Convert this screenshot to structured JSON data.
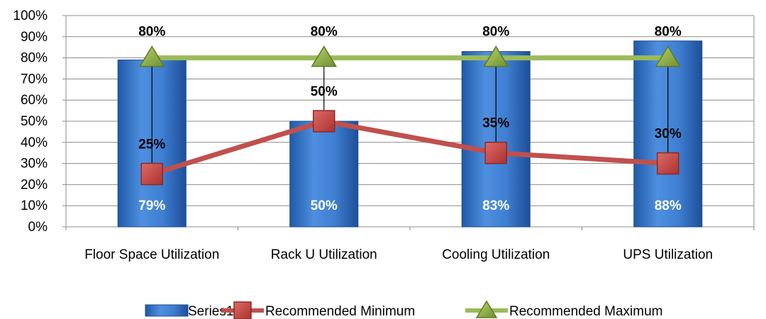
{
  "chart_data": {
    "type": "bar",
    "categories": [
      "Floor Space Utilization",
      "Rack U Utilization",
      "Cooling Utilization",
      "UPS Utilization"
    ],
    "ylim": [
      0,
      100
    ],
    "yticks": [
      "0%",
      "10%",
      "20%",
      "30%",
      "40%",
      "50%",
      "60%",
      "70%",
      "80%",
      "90%",
      "100%"
    ],
    "grid": true,
    "legend_position": "bottom",
    "series": [
      {
        "name": "Series1",
        "kind": "bar",
        "values": [
          79,
          50,
          83,
          88
        ],
        "labels": [
          "79%",
          "50%",
          "83%",
          "88%"
        ],
        "color": "#3b78c8"
      },
      {
        "name": "Recommended Minimum",
        "kind": "line",
        "marker": "square",
        "values": [
          25,
          50,
          35,
          30
        ],
        "labels": [
          "25%",
          "50%",
          "35%",
          "30%"
        ],
        "color": "#c0504d"
      },
      {
        "name": "Recommended Maximum",
        "kind": "line",
        "marker": "triangle",
        "values": [
          80,
          80,
          80,
          80
        ],
        "labels": [
          "80%",
          "80%",
          "80%",
          "80%"
        ],
        "color": "#9bbb59"
      }
    ],
    "high_low_lines": true
  }
}
